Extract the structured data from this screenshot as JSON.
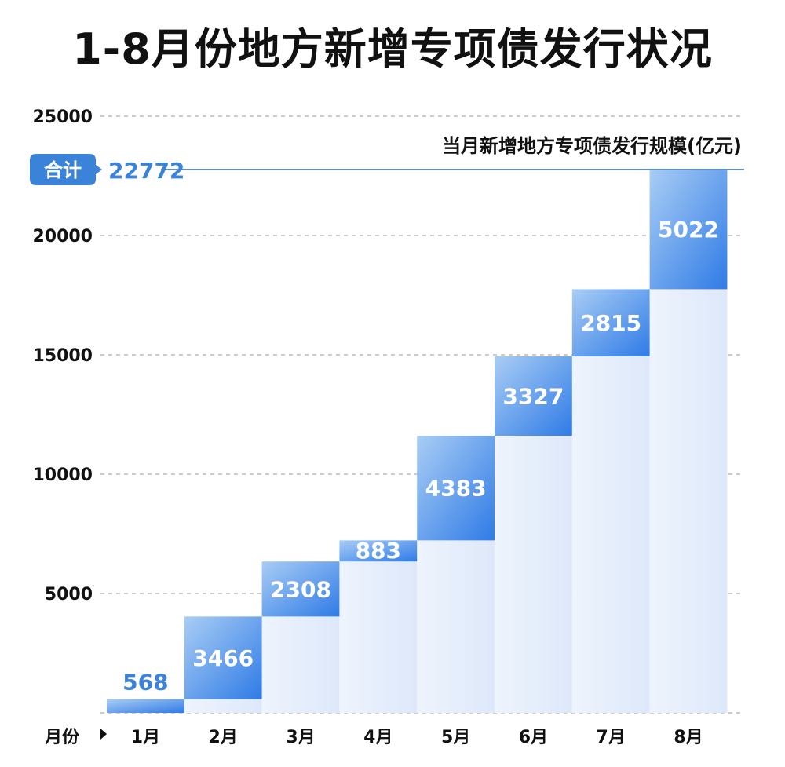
{
  "title": "1-8月份地方新增专项债发行状况",
  "chart_data": {
    "type": "bar",
    "subtype": "waterfall",
    "legend": "当月新增地方专项债发行规模(亿元)",
    "xlabel": "月份",
    "categories": [
      "1月",
      "2月",
      "3月",
      "4月",
      "5月",
      "6月",
      "7月",
      "8月"
    ],
    "values": [
      568,
      3466,
      2308,
      883,
      4383,
      3327,
      2815,
      5022
    ],
    "total_label": "合计",
    "total_value": "22772",
    "ylim": [
      0,
      25000
    ],
    "yticks": [
      "5000",
      "10000",
      "15000",
      "20000",
      "25000"
    ],
    "grid": true,
    "colors": {
      "bar_top": "#9ec7f3",
      "bar_bottom": "#2f7be6",
      "area": "#e3edfb",
      "accent": "#3b82d9"
    }
  }
}
